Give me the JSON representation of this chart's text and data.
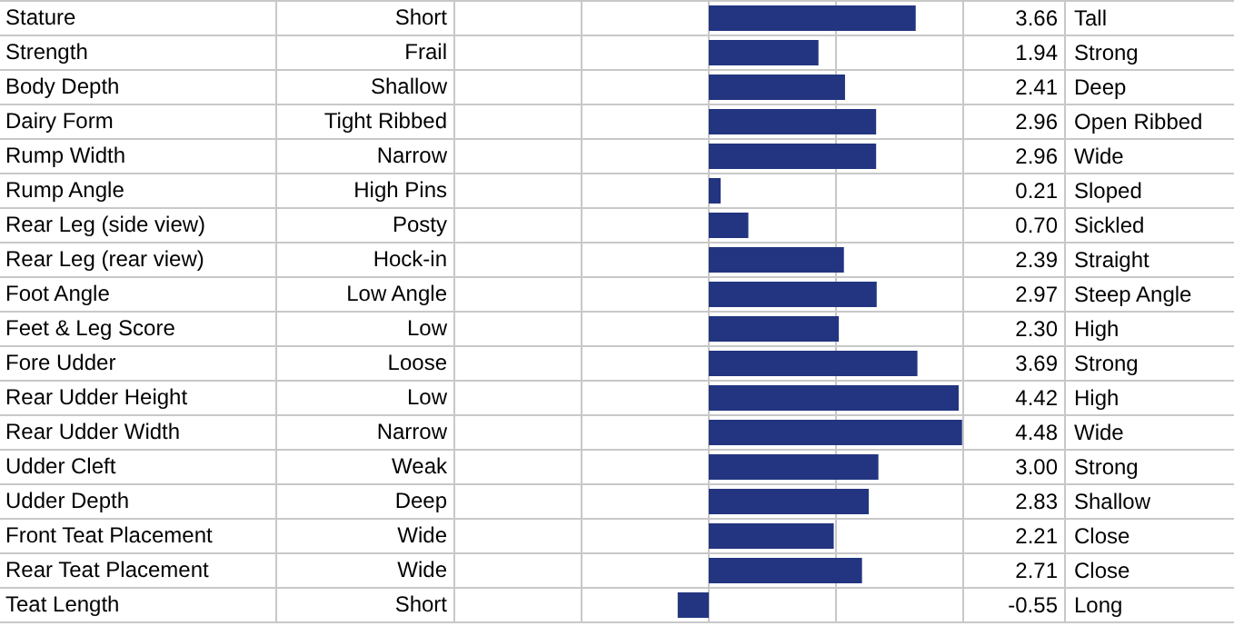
{
  "chart_data": {
    "type": "bar",
    "orientation": "horizontal",
    "categories": [
      "Stature",
      "Strength",
      "Body Depth",
      "Dairy Form",
      "Rump Width",
      "Rump Angle",
      "Rear Leg (side view)",
      "Rear Leg (rear view)",
      "Foot Angle",
      "Feet & Leg Score",
      "Fore Udder",
      "Rear Udder Height",
      "Rear Udder Width",
      "Udder Cleft",
      "Udder Depth",
      "Front Teat Placement",
      "Rear Teat Placement",
      "Teat Length"
    ],
    "values": [
      3.66,
      1.94,
      2.41,
      2.96,
      2.96,
      0.21,
      0.7,
      2.39,
      2.97,
      2.3,
      3.69,
      4.42,
      4.48,
      3.0,
      2.83,
      2.21,
      2.71,
      -0.55
    ],
    "value_labels": [
      "3.66",
      "1.94",
      "2.41",
      "2.96",
      "2.96",
      "0.21",
      "0.70",
      "2.39",
      "2.97",
      "2.30",
      "3.69",
      "4.42",
      "4.48",
      "3.00",
      "2.83",
      "2.21",
      "2.71",
      "-0.55"
    ],
    "color": "#233580",
    "annotations": [
      "Short",
      "Frail",
      "Shallow",
      "Tight Ribbed",
      "Narrow",
      "High Pins",
      "Posty",
      "Hock-in",
      "Low Angle",
      "Low",
      "Loose",
      "Low",
      "Narrow",
      "Weak",
      "Deep",
      "Wide",
      "Wide",
      "Short"
    ],
    "y2_categories": [
      "Tall",
      "Strong",
      "Deep",
      "Open Ribbed",
      "Wide",
      "Sloped",
      "Sickled",
      "Straight",
      "Steep Angle",
      "High",
      "Strong",
      "High",
      "Wide",
      "Strong",
      "Shallow",
      "Close",
      "Close",
      "Long"
    ],
    "xlim": [
      -4.5,
      4.5
    ],
    "xticks": [
      {
        "value": -4.5,
        "label": null
      },
      {
        "value": -2.25,
        "label": null
      },
      {
        "value": 0,
        "label": null
      },
      {
        "value": 2.25,
        "label": null
      },
      {
        "value": 4.5,
        "label": null
      }
    ],
    "tick_labels": "y",
    "grid": true
  }
}
